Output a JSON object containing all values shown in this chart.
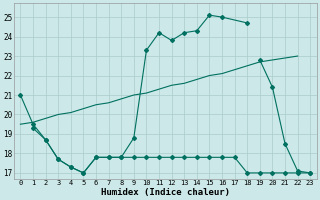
{
  "xlabel": "Humidex (Indice chaleur)",
  "bg_color": "#cce8e8",
  "grid_color": "#aacccc",
  "line_color": "#007060",
  "xlim": [
    -0.5,
    23.5
  ],
  "ylim": [
    16.7,
    25.7
  ],
  "xticks": [
    0,
    1,
    2,
    3,
    4,
    5,
    6,
    7,
    8,
    9,
    10,
    11,
    12,
    13,
    14,
    15,
    16,
    17,
    18,
    19,
    20,
    21,
    22,
    23
  ],
  "yticks": [
    17,
    18,
    19,
    20,
    21,
    22,
    23,
    24,
    25
  ],
  "line1_x": [
    0,
    1,
    2,
    3,
    4,
    5,
    6,
    7,
    8,
    9,
    10,
    11,
    12,
    13,
    14,
    15,
    16,
    18
  ],
  "line1_y": [
    21,
    19.5,
    18.7,
    17.7,
    17.3,
    17.0,
    17.8,
    17.8,
    17.8,
    18.8,
    23.3,
    24.2,
    23.8,
    24.2,
    24.3,
    25.1,
    25.0,
    24.7
  ],
  "line2_x": [
    0,
    1,
    2,
    3,
    4,
    5,
    6,
    7,
    8,
    9,
    10,
    11,
    12,
    13,
    14,
    15,
    16,
    17,
    18,
    19,
    20,
    21,
    22
  ],
  "line2_y": [
    19.5,
    19.6,
    19.8,
    20.0,
    20.1,
    20.3,
    20.5,
    20.6,
    20.8,
    21.0,
    21.1,
    21.3,
    21.5,
    21.6,
    21.8,
    22.0,
    22.1,
    22.3,
    22.5,
    22.7,
    22.8,
    22.9,
    23.0
  ],
  "line3_x": [
    1,
    2,
    3,
    4,
    5,
    6,
    7,
    8,
    9,
    10,
    11,
    12,
    13,
    14,
    15,
    16,
    17,
    18,
    19,
    20,
    21,
    22,
    23
  ],
  "line3_y": [
    19.3,
    18.7,
    17.7,
    17.3,
    17.0,
    17.8,
    17.8,
    17.8,
    17.8,
    17.8,
    17.8,
    17.8,
    17.8,
    17.8,
    17.8,
    17.8,
    17.8,
    17.0,
    17.0,
    17.0,
    17.0,
    17.0,
    17.0
  ],
  "line4_x": [
    19,
    20,
    21,
    22,
    23
  ],
  "line4_y": [
    22.8,
    21.4,
    18.5,
    17.1,
    17.0
  ]
}
